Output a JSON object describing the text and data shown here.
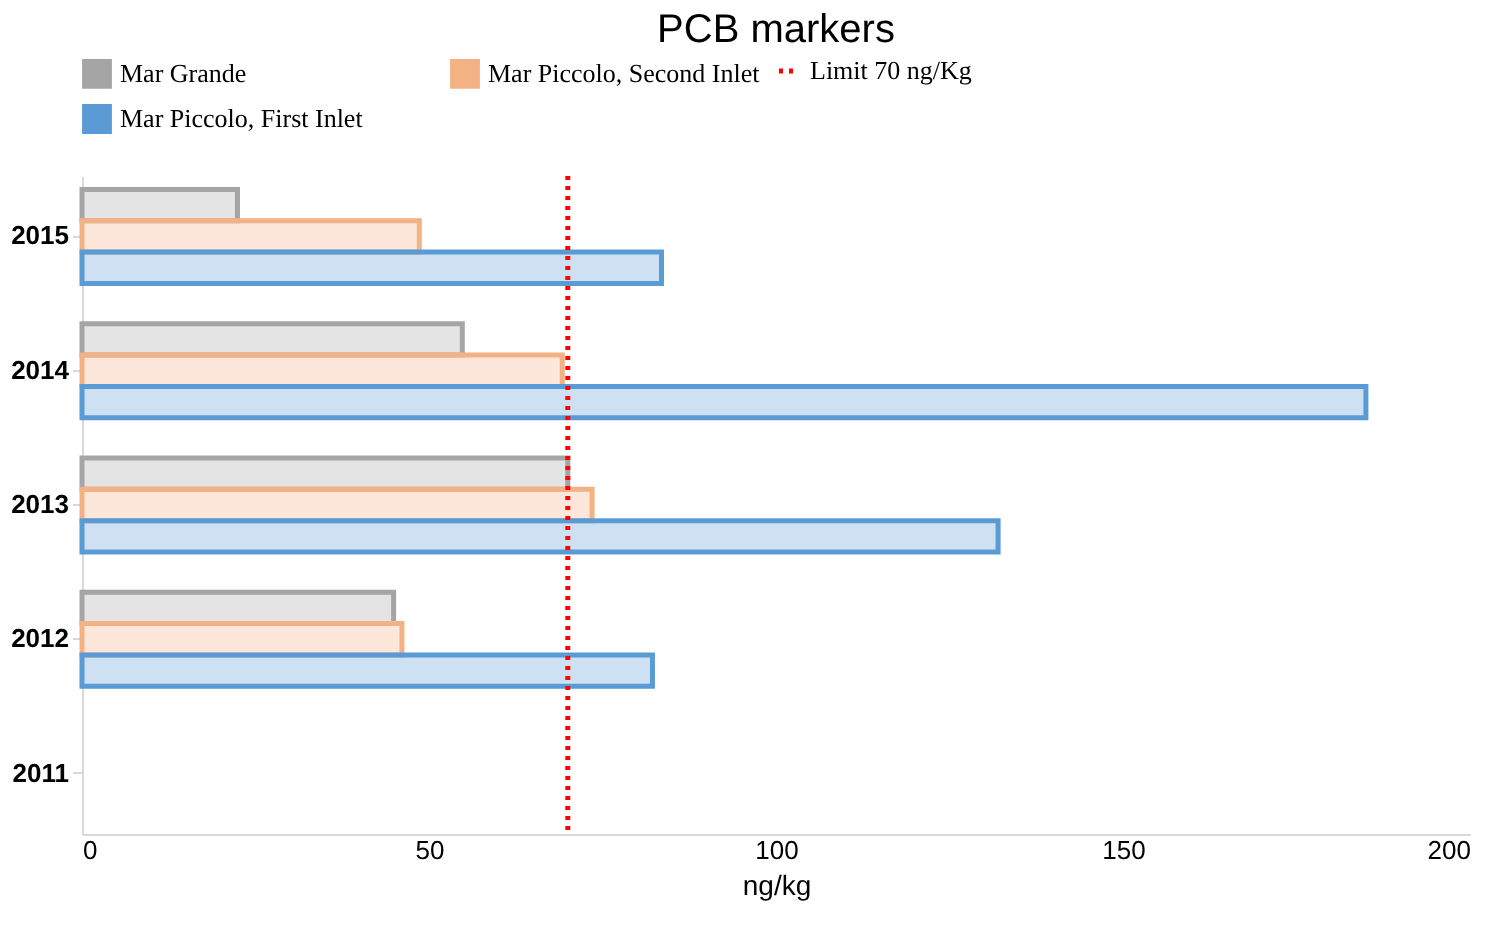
{
  "chart_data": {
    "type": "bar",
    "orientation": "horizontal",
    "title": "PCB markers",
    "xlabel": "ng/kg",
    "categories": [
      "2015",
      "2014",
      "2013",
      "2012",
      "2011"
    ],
    "series": [
      {
        "name": "Mar Grande",
        "color": "#a5a5a5",
        "values": [
          22.4,
          54.8,
          70,
          44.9,
          null
        ]
      },
      {
        "name": "Mar Piccolo, Second Inlet",
        "color": "#f4b183",
        "values": [
          48.6,
          69.2,
          73.5,
          46.1,
          null
        ]
      },
      {
        "name": "Mar Piccolo, First Inlet",
        "color": "#5b9bd5",
        "values": [
          83.5,
          185,
          132,
          82.2,
          null
        ]
      }
    ],
    "xlim": [
      0,
      200
    ],
    "xticks": [
      0,
      50,
      100,
      150,
      200
    ],
    "grid": false,
    "legend": "top",
    "ref_lines": [
      {
        "axis": "x",
        "value": 70,
        "label": "Limit 70 ng/Kg",
        "color": "#ff0000",
        "line_style": "dotted"
      }
    ]
  }
}
